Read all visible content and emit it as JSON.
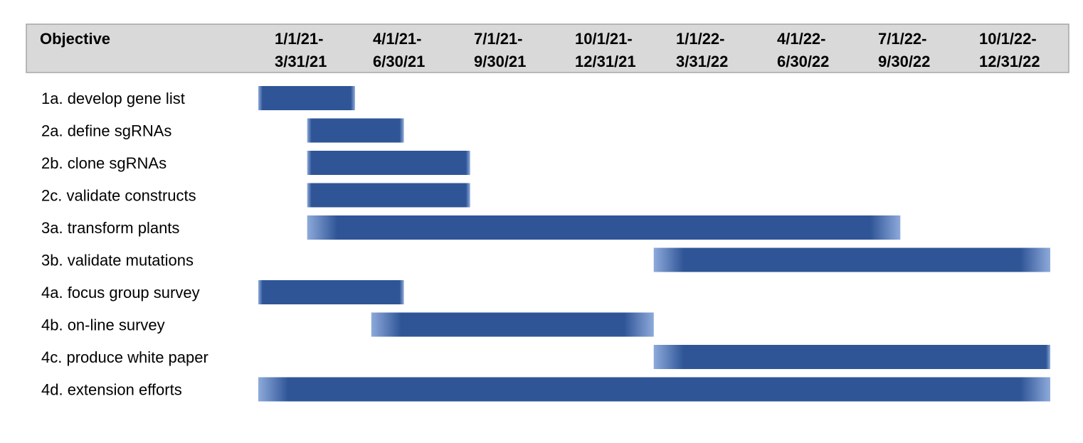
{
  "chart_data": {
    "type": "gantt",
    "header_label": "Objective",
    "periods": [
      {
        "line1": "1/1/21-",
        "line2": "3/31/21"
      },
      {
        "line1": "4/1/21-",
        "line2": "6/30/21"
      },
      {
        "line1": "7/1/21-",
        "line2": "9/30/21"
      },
      {
        "line1": "10/1/21-",
        "line2": "12/31/21"
      },
      {
        "line1": "1/1/22-",
        "line2": "3/31/22"
      },
      {
        "line1": "4/1/22-",
        "line2": "6/30/22"
      },
      {
        "line1": "7/1/22-",
        "line2": "9/30/22"
      },
      {
        "line1": "10/1/22-",
        "line2": "12/31/22"
      }
    ],
    "tasks": [
      {
        "label": "1a. develop gene list",
        "start": "2021-01-01",
        "end": "2021-03-31",
        "fade": "none"
      },
      {
        "label": "2a. define sgRNAs",
        "start": "2021-02-15",
        "end": "2021-05-15",
        "fade": "none"
      },
      {
        "label": "2b. clone sgRNAs",
        "start": "2021-02-15",
        "end": "2021-07-15",
        "fade": "none"
      },
      {
        "label": "2c. validate constructs",
        "start": "2021-02-15",
        "end": "2021-07-15",
        "fade": "none"
      },
      {
        "label": "3a. transform plants",
        "start": "2021-02-15",
        "end": "2022-08-15",
        "fade": "both"
      },
      {
        "label": "3b. validate mutations",
        "start": "2021-12-31",
        "end": "2022-12-31",
        "fade": "both"
      },
      {
        "label": "4a. focus group survey",
        "start": "2021-01-01",
        "end": "2021-05-15",
        "fade": "none"
      },
      {
        "label": "4b. on-line survey",
        "start": "2021-04-15",
        "end": "2021-12-31",
        "fade": "both"
      },
      {
        "label": "4c. produce white paper",
        "start": "2021-12-31",
        "end": "2022-12-31",
        "fade": "left"
      },
      {
        "label": "4d. extension efforts",
        "start": "2021-01-01",
        "end": "2022-12-31",
        "fade": "both"
      }
    ],
    "colors": {
      "bar": "#2f5597",
      "bar_light": "#8eaadb",
      "header_bg": "#d9d9d9",
      "header_border": "#a6a6a6"
    }
  }
}
